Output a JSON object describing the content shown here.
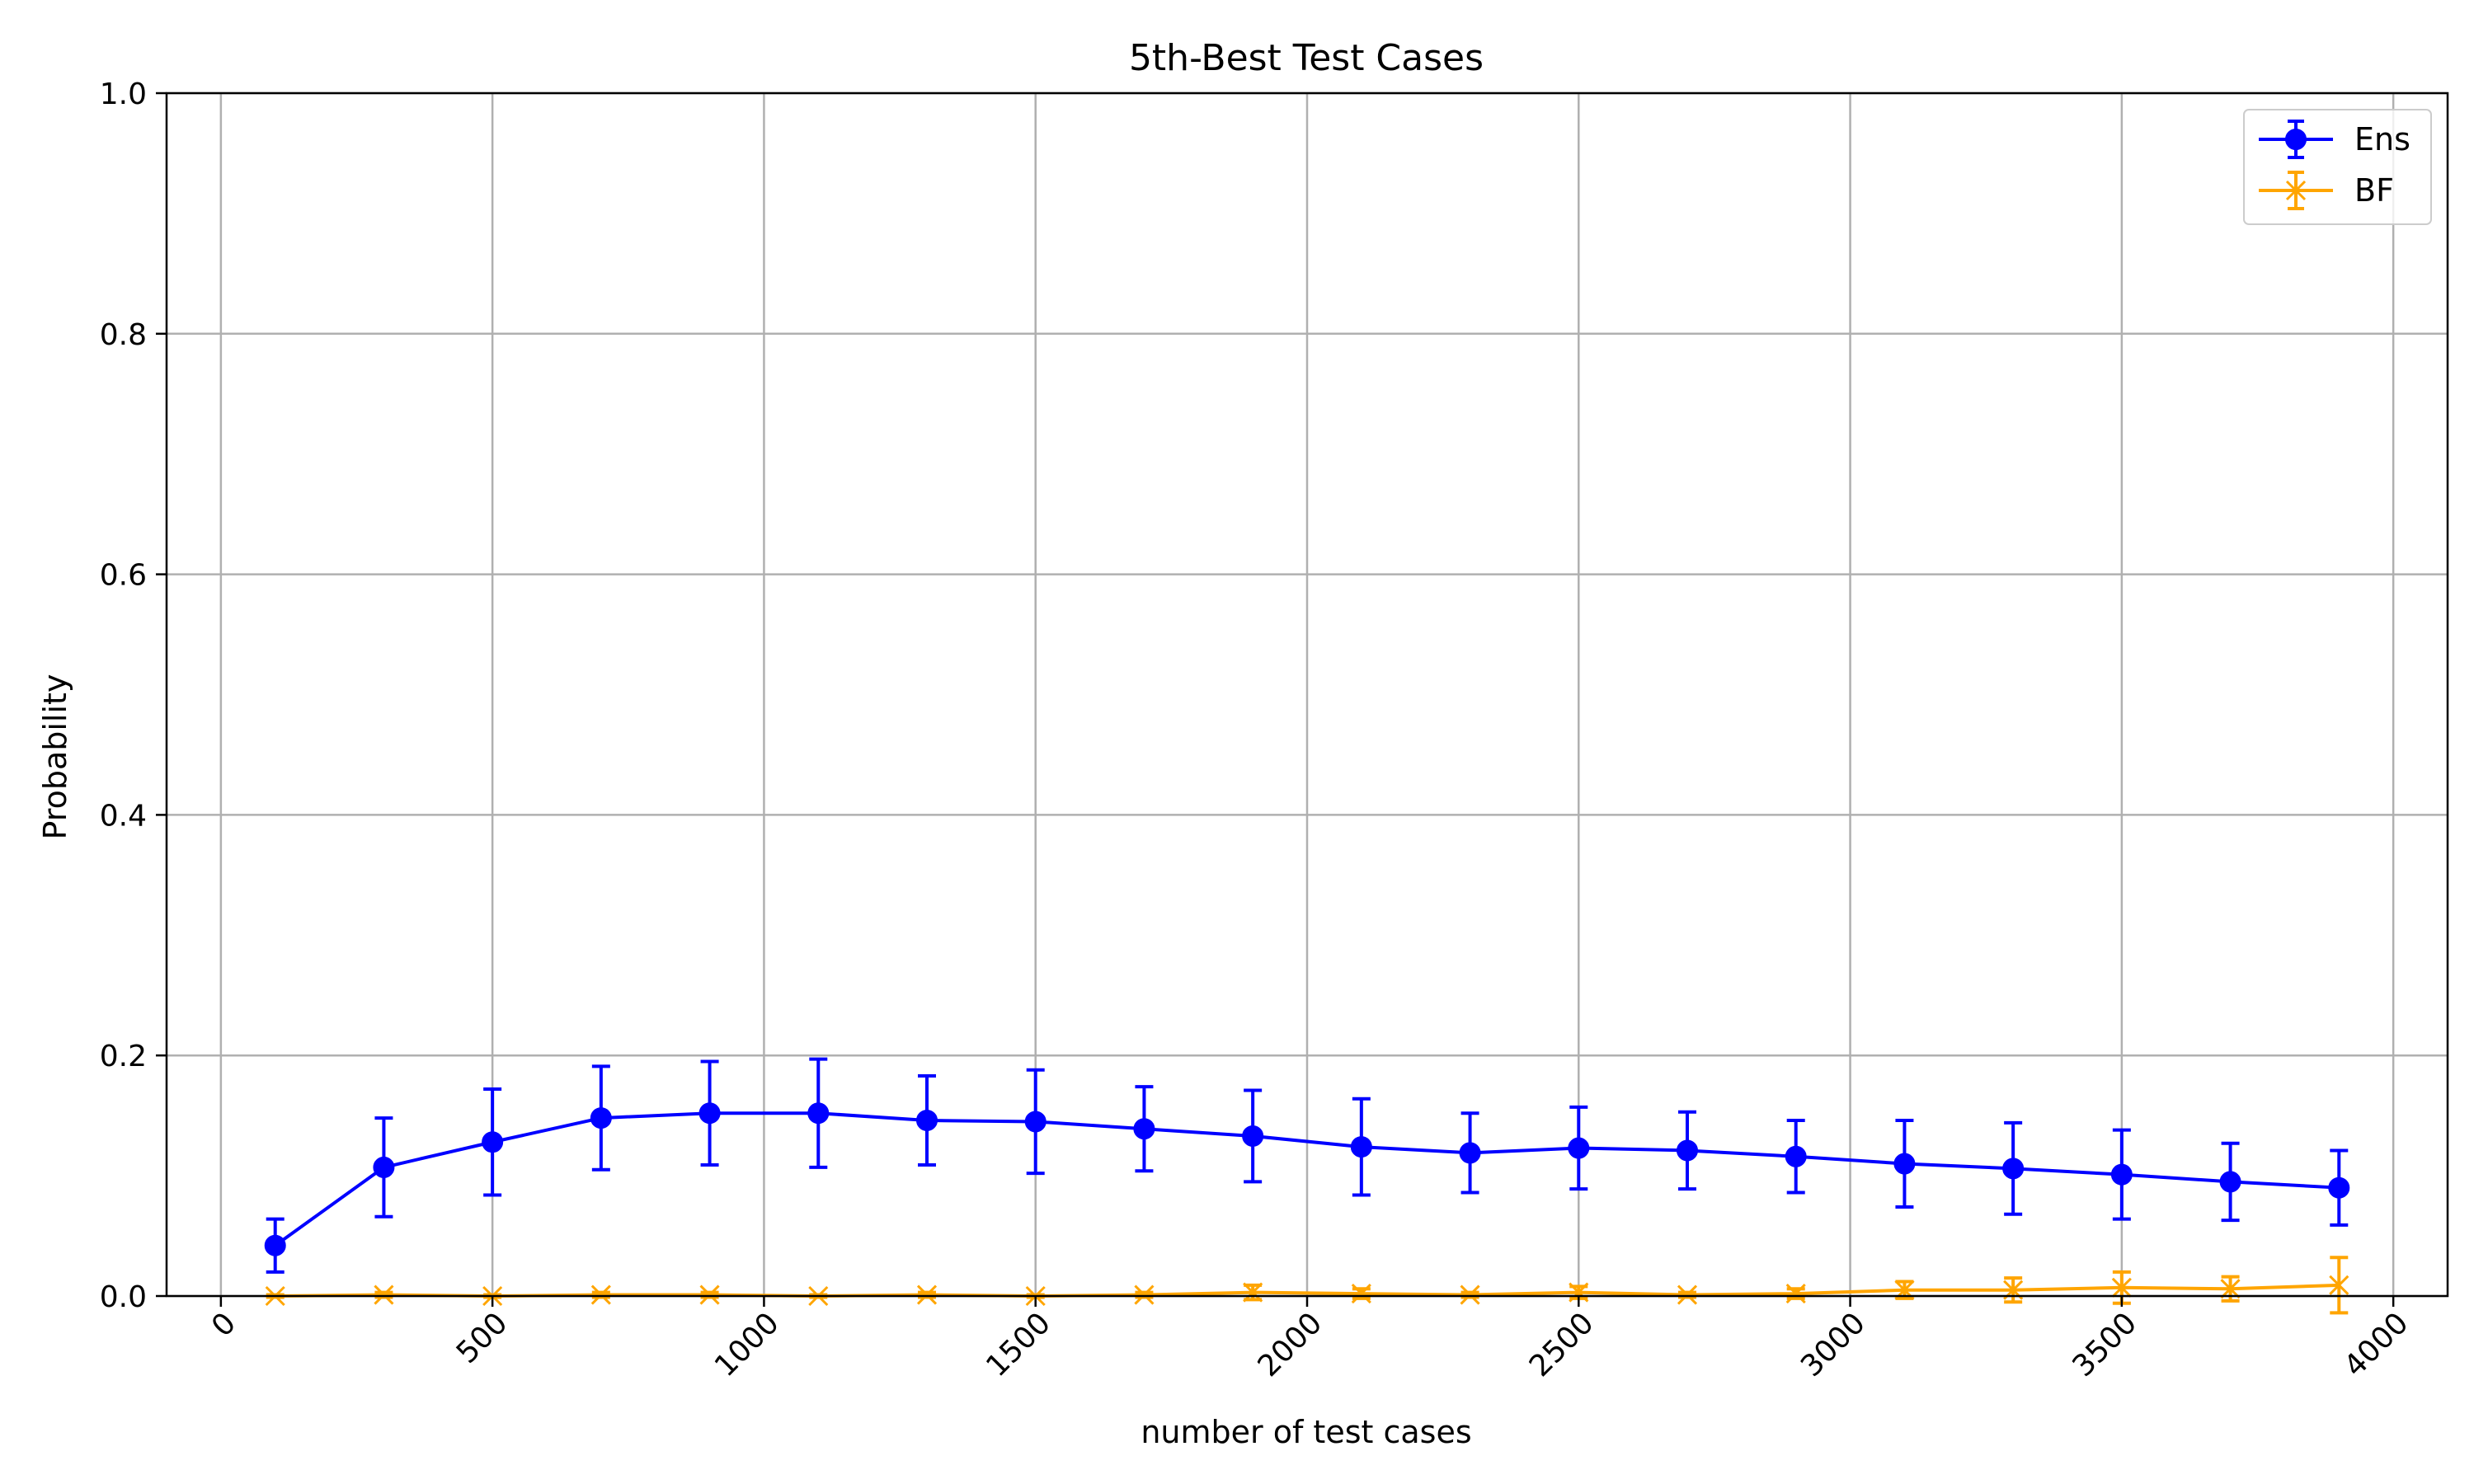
{
  "chart_data": {
    "type": "line",
    "title": "5th-Best Test Cases",
    "xlabel": "number of test cases",
    "ylabel": "Probability",
    "xlim": [
      -100,
      4100
    ],
    "ylim": [
      0.0,
      1.0
    ],
    "xticks": [
      0,
      500,
      1000,
      1500,
      2000,
      2500,
      3000,
      3500,
      4000
    ],
    "yticks": [
      0.0,
      0.2,
      0.4,
      0.6,
      0.8,
      1.0
    ],
    "xtick_labels": [
      "0",
      "500",
      "1000",
      "1500",
      "2000",
      "2500",
      "3000",
      "3500",
      "4000"
    ],
    "ytick_labels": [
      "0.0",
      "0.2",
      "0.4",
      "0.6",
      "0.8",
      "1.0"
    ],
    "xtick_rotation": 45,
    "grid": true,
    "legend_position": "top-right",
    "x": [
      100,
      300,
      500,
      700,
      900,
      1100,
      1300,
      1500,
      1700,
      1900,
      2100,
      2300,
      2500,
      2700,
      2900,
      3100,
      3300,
      3500,
      3700,
      3900
    ],
    "series": [
      {
        "name": "Ens",
        "color": "#0000ff",
        "marker": "circle",
        "values": [
          0.042,
          0.107,
          0.128,
          0.148,
          0.152,
          0.152,
          0.146,
          0.145,
          0.139,
          0.133,
          0.124,
          0.119,
          0.123,
          0.121,
          0.116,
          0.11,
          0.106,
          0.101,
          0.095,
          0.09
        ],
        "errors": [
          0.022,
          0.041,
          0.044,
          0.043,
          0.043,
          0.045,
          0.037,
          0.043,
          0.035,
          0.038,
          0.04,
          0.033,
          0.034,
          0.032,
          0.03,
          0.036,
          0.038,
          0.037,
          0.032,
          0.031
        ]
      },
      {
        "name": "BF",
        "color": "#ffa500",
        "marker": "x",
        "values": [
          0.0,
          0.001,
          0.0,
          0.001,
          0.001,
          0.0,
          0.001,
          0.0,
          0.001,
          0.003,
          0.002,
          0.001,
          0.003,
          0.001,
          0.002,
          0.005,
          0.005,
          0.007,
          0.006,
          0.009
        ],
        "errors": [
          0.001,
          0.002,
          0.001,
          0.002,
          0.002,
          0.001,
          0.002,
          0.001,
          0.002,
          0.006,
          0.004,
          0.002,
          0.005,
          0.002,
          0.004,
          0.007,
          0.01,
          0.013,
          0.01,
          0.023
        ]
      }
    ]
  }
}
